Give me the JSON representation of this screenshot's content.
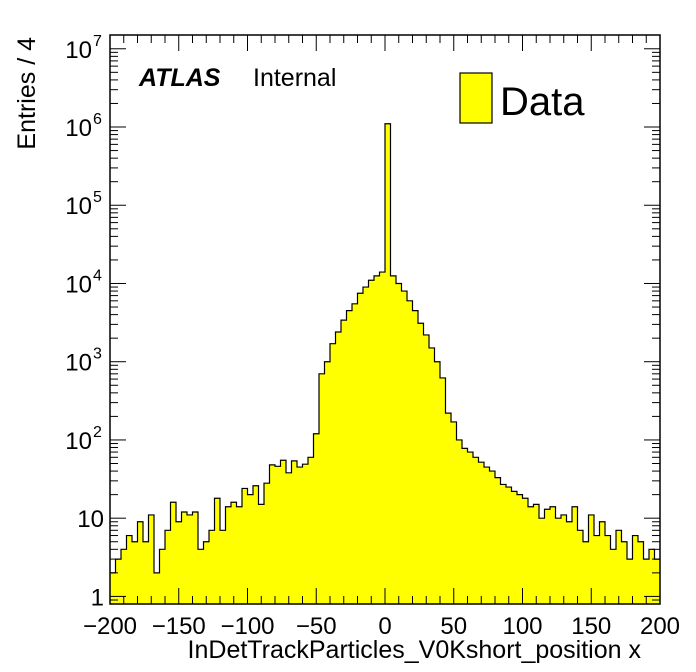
{
  "chart_data": {
    "type": "bar",
    "style": "histogram",
    "fill_color": "#ffff00",
    "edge_color": "#000000",
    "xlabel": "InDetTrackParticles_V0Kshort_position x",
    "ylabel": "Entries / 4",
    "xlim": [
      -200,
      200
    ],
    "ylim": [
      0.8,
      15000000
    ],
    "yscale": "log",
    "bin_width": 4,
    "x_ticks": [
      -200,
      -150,
      -100,
      -50,
      0,
      50,
      100,
      150,
      200
    ],
    "x_tick_labels": [
      "−200",
      "−150",
      "−100",
      "−50",
      "0",
      "50",
      "100",
      "150",
      "200"
    ],
    "y_ticks": [
      {
        "value": 1,
        "base": "1",
        "exp": ""
      },
      {
        "value": 10,
        "base": "10",
        "exp": ""
      },
      {
        "value": 100,
        "base": "10",
        "exp": "2"
      },
      {
        "value": 1000,
        "base": "10",
        "exp": "3"
      },
      {
        "value": 10000,
        "base": "10",
        "exp": "4"
      },
      {
        "value": 100000,
        "base": "10",
        "exp": "5"
      },
      {
        "value": 1000000,
        "base": "10",
        "exp": "6"
      },
      {
        "value": 10000000,
        "base": "10",
        "exp": "7"
      }
    ],
    "annotation": {
      "experiment": "ATLAS",
      "label": "Internal"
    },
    "legend": {
      "position": "top-right",
      "entries": [
        "Data"
      ]
    },
    "bins_low_edge": [
      -200,
      -196,
      -192,
      -188,
      -184,
      -180,
      -176,
      -172,
      -168,
      -164,
      -160,
      -156,
      -152,
      -148,
      -144,
      -140,
      -136,
      -132,
      -128,
      -124,
      -120,
      -116,
      -112,
      -108,
      -104,
      -100,
      -96,
      -92,
      -88,
      -84,
      -80,
      -76,
      -72,
      -68,
      -64,
      -60,
      -56,
      -52,
      -48,
      -44,
      -40,
      -36,
      -32,
      -28,
      -24,
      -20,
      -16,
      -12,
      -8,
      -4,
      0,
      4,
      8,
      12,
      16,
      20,
      24,
      28,
      32,
      36,
      40,
      44,
      48,
      52,
      56,
      60,
      64,
      68,
      72,
      76,
      80,
      84,
      88,
      92,
      96,
      100,
      104,
      108,
      112,
      116,
      120,
      124,
      128,
      132,
      136,
      140,
      144,
      148,
      152,
      156,
      160,
      164,
      168,
      172,
      176,
      180,
      184,
      188,
      192,
      196
    ],
    "values": [
      2,
      3,
      4,
      6,
      5,
      9,
      5,
      11,
      2,
      4,
      7,
      16,
      9,
      12,
      11,
      12,
      4,
      5,
      7,
      18,
      7,
      14,
      16,
      14,
      24,
      20,
      26,
      15,
      28,
      48,
      46,
      55,
      38,
      54,
      45,
      49,
      60,
      120,
      700,
      1000,
      1700,
      2400,
      3400,
      4500,
      5500,
      7500,
      9000,
      11000,
      12500,
      14000,
      1100000,
      12500,
      10000,
      8000,
      6000,
      4500,
      3100,
      2200,
      1500,
      1000,
      620,
      220,
      170,
      100,
      78,
      70,
      60,
      52,
      45,
      40,
      33,
      27,
      25,
      22,
      20,
      18,
      14,
      15,
      10,
      13,
      14,
      10,
      11,
      9,
      14,
      7,
      5,
      11,
      6,
      9,
      6,
      4,
      7,
      5,
      3,
      6,
      5,
      3,
      4,
      3
    ]
  }
}
